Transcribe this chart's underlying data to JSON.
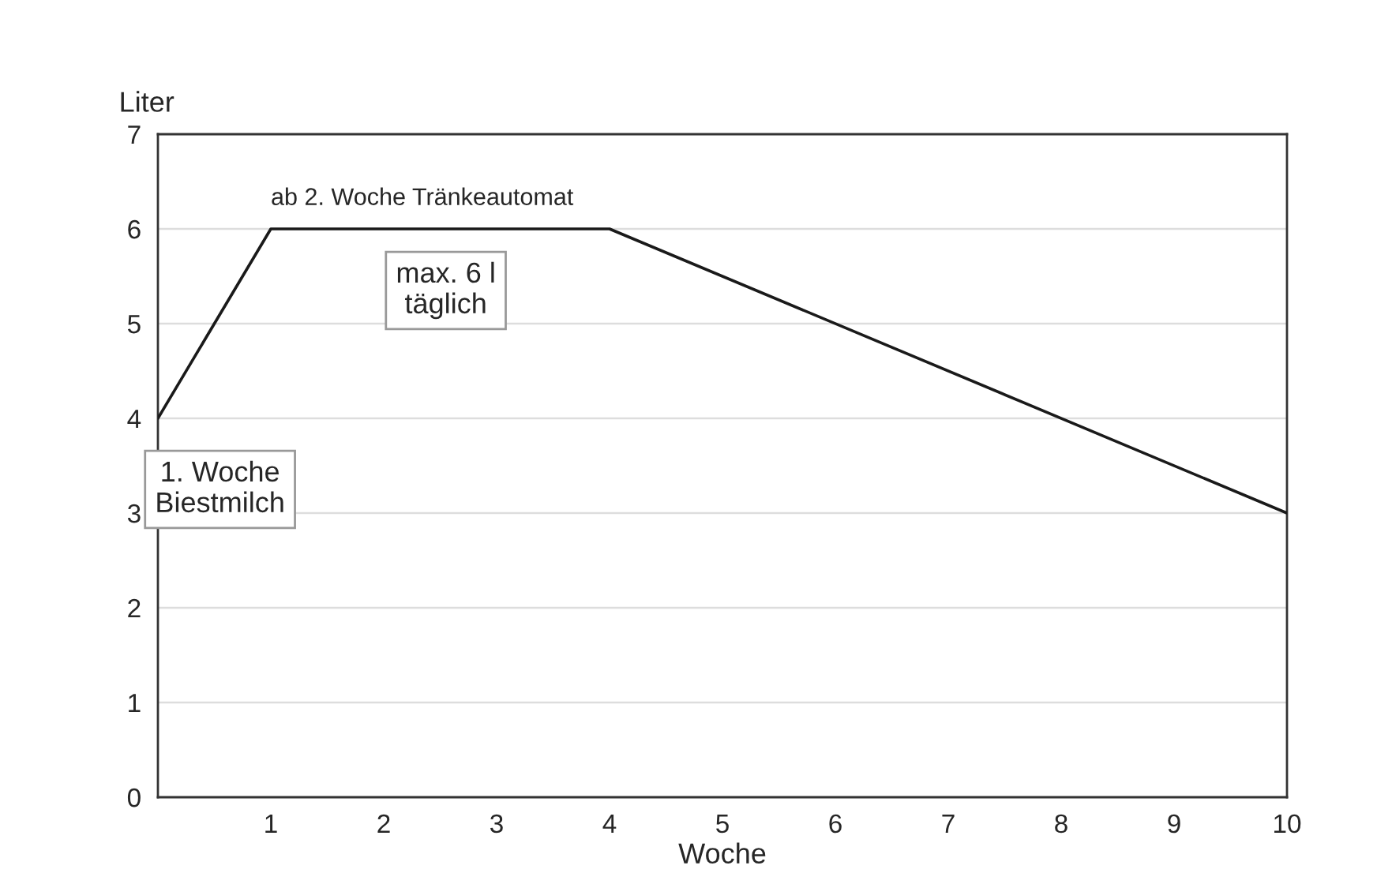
{
  "chart_data": {
    "type": "line",
    "xlabel": "Woche",
    "ylabel": "Liter",
    "x": [
      0,
      1,
      4,
      10
    ],
    "series": [
      {
        "color": "#1a1a1a",
        "values": [
          4,
          6,
          6,
          3
        ]
      }
    ],
    "xlim": [
      0,
      10
    ],
    "xticks": [
      1,
      2,
      3,
      4,
      5,
      6,
      7,
      8,
      9,
      10
    ],
    "ylim": [
      0,
      7
    ],
    "yticks": [
      0,
      1,
      2,
      3,
      4,
      5,
      6,
      7
    ],
    "grid": "y",
    "marker": "none",
    "line_style": "solid",
    "annotations": [
      "ab 2. Woche Tränkeautomat",
      "max. 6 l\ntäglich",
      "1. Woche\nBiestmilch"
    ]
  }
}
